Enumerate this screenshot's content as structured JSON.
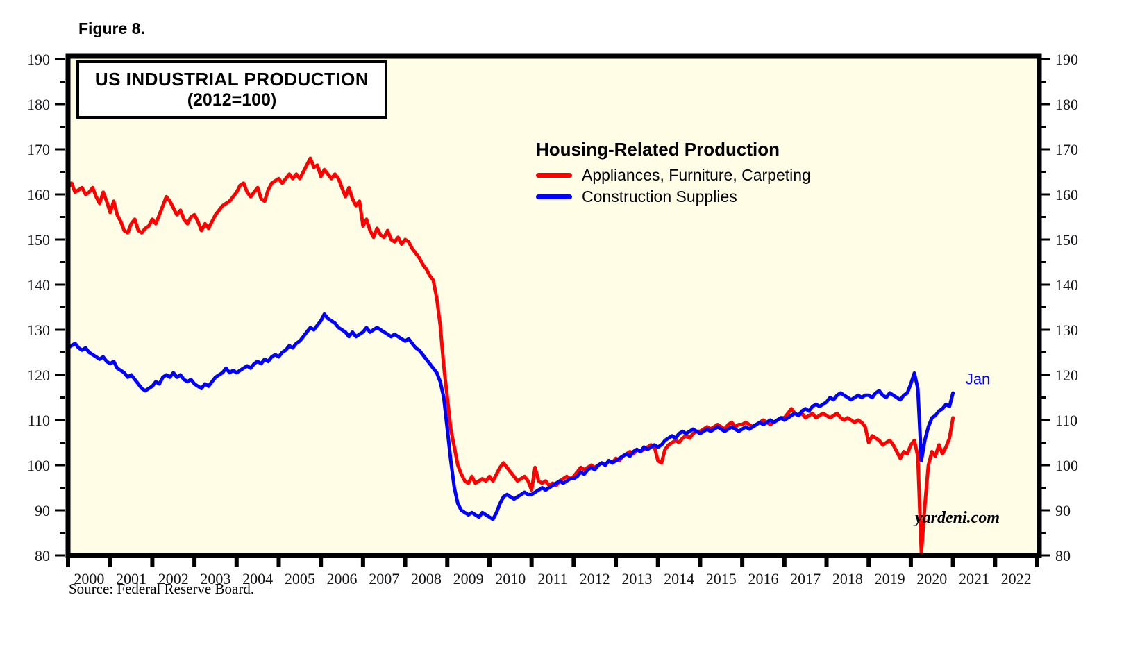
{
  "figure": {
    "label": "Figure 8."
  },
  "chart": {
    "title_line1": "US INDUSTRIAL PRODUCTION",
    "title_line2": "(2012=100)"
  },
  "legend": {
    "title": "Housing-Related Production"
  },
  "watermark": "yardeni.com",
  "source_note": "Source: Federal Reserve Board.",
  "colors": {
    "plot_background": "#FFFDE6",
    "axis": "#000000",
    "tick_label": "#121218",
    "red_series": "#FE0000",
    "blue_series": "#0000FE"
  },
  "chart_data": {
    "type": "line",
    "title": "US INDUSTRIAL PRODUCTION (2012=100)",
    "legend_title": "Housing-Related Production",
    "legend_position": "upper middle",
    "grid": false,
    "frequency": "monthly",
    "x_start_year": 2000,
    "xlim": [
      2000,
      2023
    ],
    "ylim": [
      80,
      190
    ],
    "y_tick_step": 10,
    "y_minor_tick_step": 5,
    "y_axis_sides": "both",
    "x_labels": [
      "2000",
      "2001",
      "2002",
      "2003",
      "2004",
      "2005",
      "2006",
      "2007",
      "2008",
      "2009",
      "2010",
      "2011",
      "2012",
      "2013",
      "2014",
      "2015",
      "2016",
      "2017",
      "2018",
      "2019",
      "2020",
      "2021",
      "2022"
    ],
    "annotations": [
      {
        "text": "Jan",
        "x": 2021.3,
        "y": 119,
        "color": "#0000FE"
      }
    ],
    "series": [
      {
        "name": "Appliances, Furniture, Carpeting",
        "color": "#FE0000",
        "values": [
          161.5,
          162.5,
          160.5,
          161,
          161.5,
          160,
          160.5,
          161.5,
          159.5,
          158,
          160.5,
          158.5,
          156,
          158.5,
          155.5,
          154,
          152,
          151.5,
          153.5,
          154.5,
          152,
          151.5,
          152.5,
          153,
          154.5,
          153.5,
          155.5,
          157.5,
          159.5,
          158.5,
          157,
          155.5,
          156.5,
          154.5,
          153.5,
          155,
          155.5,
          154,
          152,
          153.5,
          152.5,
          154,
          155.5,
          156.5,
          157.5,
          158,
          158.5,
          159.5,
          160.5,
          162,
          162.5,
          160.5,
          159.5,
          160.5,
          161.5,
          159,
          158.5,
          161,
          162.5,
          163,
          163.5,
          162.5,
          163.5,
          164.5,
          163.5,
          164.5,
          163.5,
          165,
          166.5,
          168,
          166,
          166.5,
          164,
          165.5,
          164.5,
          163.5,
          164.5,
          163.5,
          161.5,
          159.5,
          161.5,
          159,
          157.5,
          158.5,
          153,
          154.5,
          152,
          150.5,
          152.5,
          151,
          150.5,
          152,
          150,
          149.5,
          150.5,
          149,
          150,
          149.5,
          148,
          147,
          146,
          144.5,
          143.5,
          142,
          141,
          137,
          131,
          122,
          115,
          108,
          104,
          100,
          98,
          96.5,
          96,
          97.5,
          96,
          96.5,
          97,
          96.5,
          97.5,
          96.5,
          98,
          99.5,
          100.5,
          99.5,
          98.5,
          97.5,
          96.5,
          97,
          97.5,
          96.5,
          94.5,
          99.5,
          96.5,
          96,
          96.5,
          95.5,
          96,
          95.5,
          96.5,
          97,
          97.5,
          97,
          97.5,
          98.5,
          99.5,
          99,
          99.5,
          100,
          99.5,
          100,
          100.5,
          100,
          101,
          100.5,
          101.5,
          101,
          102,
          102.5,
          103,
          102.5,
          103.5,
          103,
          103.5,
          104,
          104.5,
          104,
          101,
          100.5,
          103.5,
          104.5,
          105,
          105.5,
          105,
          106,
          106.5,
          106,
          107,
          107.5,
          107.5,
          108,
          108.5,
          108,
          108.5,
          109,
          108.5,
          108,
          109,
          109.5,
          108.5,
          109,
          109,
          109.5,
          109,
          108.5,
          109,
          109.5,
          110,
          109.5,
          109,
          109.5,
          110,
          110.5,
          110.5,
          111.5,
          112.5,
          111.5,
          111,
          111.5,
          110.5,
          111,
          111.5,
          110.5,
          111,
          111.5,
          111,
          110.5,
          111,
          111.5,
          110.5,
          110,
          110.5,
          110,
          109.5,
          110,
          109.5,
          108.5,
          105,
          106.5,
          106,
          105.5,
          104.5,
          105,
          105.5,
          104.5,
          103,
          101.5,
          103,
          102.5,
          104.5,
          105.5,
          102,
          80.5,
          91,
          100,
          103,
          102,
          104.5,
          102.5,
          104,
          106,
          110.5
        ]
      },
      {
        "name": "Construction Supplies",
        "color": "#0000FE",
        "values": [
          126,
          126.5,
          127,
          126,
          125.5,
          126,
          125,
          124.5,
          124,
          123.5,
          124,
          123,
          122.5,
          123,
          121.5,
          121,
          120.5,
          119.5,
          120,
          119,
          118,
          117,
          116.5,
          117,
          117.5,
          118.5,
          118,
          119.5,
          120,
          119.5,
          120.5,
          119.5,
          120,
          119,
          118.5,
          119,
          118,
          117.5,
          117,
          118,
          117.5,
          118.5,
          119.5,
          120,
          120.5,
          121.5,
          120.5,
          121,
          120.5,
          121,
          121.5,
          122,
          121.5,
          122.5,
          123,
          122.5,
          123.5,
          123,
          124,
          124.5,
          124,
          125,
          125.5,
          126.5,
          126,
          127,
          127.5,
          128.5,
          129.5,
          130.5,
          130,
          131,
          132,
          133.5,
          132.5,
          132,
          131.5,
          130.5,
          130,
          129.5,
          128.5,
          129.5,
          128.5,
          129,
          129.5,
          130.5,
          129.5,
          130,
          130.5,
          130,
          129.5,
          129,
          128.5,
          129,
          128.5,
          128,
          127.5,
          128,
          127,
          126,
          125.5,
          124.5,
          123.5,
          122.5,
          121.5,
          120.5,
          118.5,
          115,
          108,
          101,
          95,
          91.5,
          90,
          89.5,
          89,
          89.5,
          89,
          88.5,
          89.5,
          89,
          88.5,
          88,
          89.5,
          91.5,
          93,
          93.5,
          93,
          92.5,
          93,
          93.5,
          94,
          93.5,
          93.5,
          94,
          94.5,
          95,
          94.5,
          95,
          95.5,
          96,
          96.5,
          96,
          96.5,
          97,
          97,
          97.5,
          98.5,
          98,
          99,
          99.5,
          99,
          100,
          100.5,
          100,
          101,
          100.5,
          101,
          101.5,
          102,
          102.5,
          102,
          103,
          103.5,
          103,
          104,
          103.5,
          104,
          104.5,
          104,
          104.5,
          105.5,
          106,
          106.5,
          106,
          107,
          107.5,
          107,
          107.5,
          108,
          107.5,
          107,
          107.5,
          108,
          107.5,
          108,
          108.5,
          108,
          107.5,
          108,
          108.5,
          108,
          107.5,
          108,
          108.5,
          108,
          108.5,
          109,
          109.5,
          109,
          109.5,
          110,
          109.5,
          110,
          110.5,
          110,
          110.5,
          111,
          111.5,
          111,
          112,
          112.5,
          112,
          113,
          113.5,
          113,
          113.5,
          114,
          115,
          114.5,
          115.5,
          116,
          115.5,
          115,
          114.5,
          115,
          115.5,
          115,
          115.5,
          115.5,
          115,
          116,
          116.5,
          115.5,
          115,
          116,
          115.5,
          115,
          114.5,
          115.5,
          116,
          118,
          120.4,
          117,
          101,
          105.5,
          108.5,
          110.5,
          111,
          112,
          112.5,
          113.5,
          113,
          116
        ]
      }
    ]
  }
}
